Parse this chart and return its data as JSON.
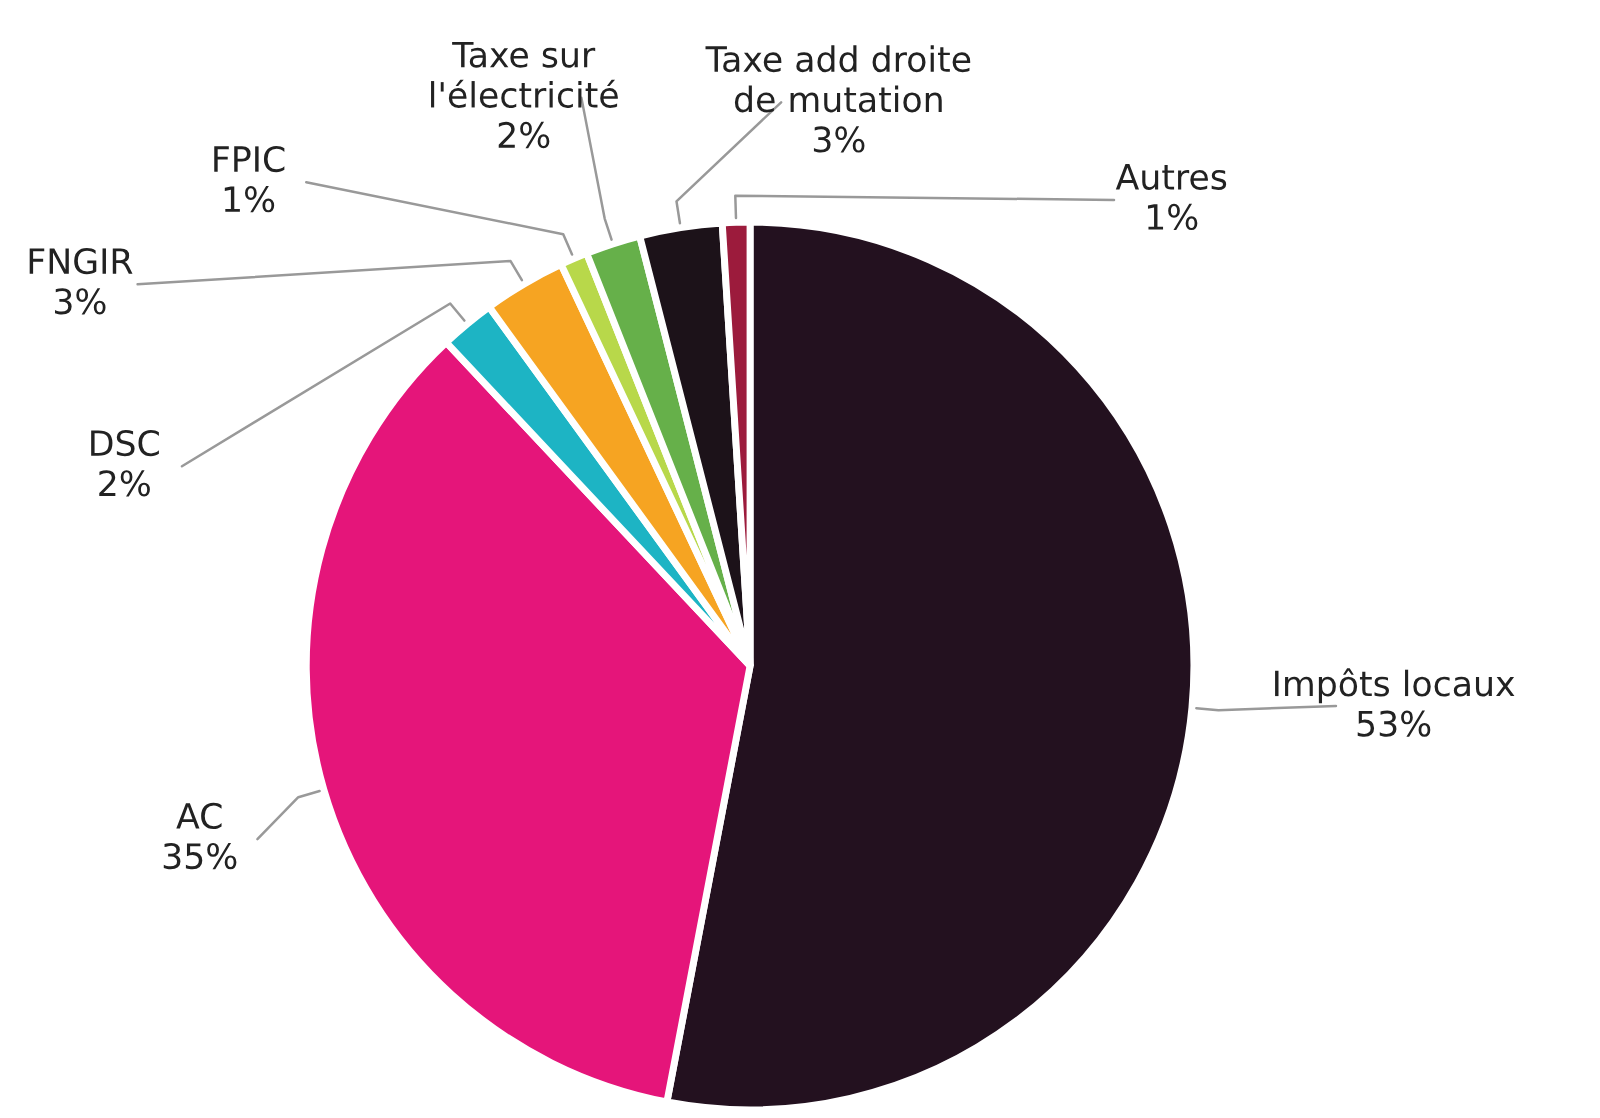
{
  "chart_data": {
    "type": "pie",
    "categories": [
      "Impôts locaux",
      "AC",
      "DSC",
      "FNGIR",
      "FPIC",
      "Taxe sur\nl'électricité",
      "Taxe add droite\nde mutation",
      "Autres"
    ],
    "values": [
      53,
      35,
      2,
      3,
      1,
      2,
      3,
      1
    ],
    "colors": [
      "#23111f",
      "#e5157a",
      "#1db4c4",
      "#f6a422",
      "#b8d84a",
      "#66b04a",
      "#1c1219",
      "#9c1b3c"
    ],
    "value_labels": [
      "53%",
      "35%",
      "2%",
      "3%",
      "1%",
      "2%",
      "3%",
      "1%"
    ]
  }
}
